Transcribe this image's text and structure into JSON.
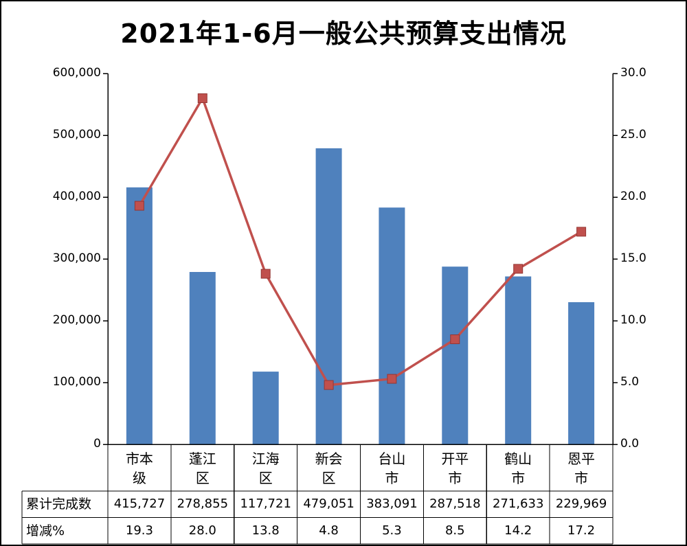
{
  "title": "2021年1-6月一般公共预算支出情况",
  "chart_data": {
    "type": "combo-bar-line",
    "title": "2021年1-6月一般公共预算支出情况",
    "categories": [
      "市本级",
      "蓬江区",
      "江海区",
      "新会区",
      "台山市",
      "开平市",
      "鹤山市",
      "恩平市"
    ],
    "series": [
      {
        "name": "累计完成数",
        "type": "bar",
        "axis": "left",
        "color": "#4f81bd",
        "values": [
          415727,
          278855,
          117721,
          479051,
          383091,
          287518,
          271633,
          229969
        ]
      },
      {
        "name": "增减%",
        "type": "line",
        "axis": "right",
        "color": "#c0504d",
        "values": [
          19.3,
          28.0,
          13.8,
          4.8,
          5.3,
          8.5,
          14.2,
          17.2
        ]
      }
    ],
    "left_axis": {
      "min": 0,
      "max": 600000,
      "step": 100000,
      "tick_labels": [
        "0",
        "100,000",
        "200,000",
        "300,000",
        "400,000",
        "500,000",
        "600,000"
      ]
    },
    "right_axis": {
      "min": 0,
      "max": 30,
      "step": 5,
      "tick_labels": [
        "0.0",
        "5.0",
        "10.0",
        "15.0",
        "20.0",
        "25.0",
        "30.0"
      ]
    },
    "grid": false,
    "legend_position": "none"
  },
  "table": {
    "row_labels": [
      "累计完成数",
      "增减%"
    ],
    "rows": [
      [
        "415,727",
        "278,855",
        "117,721",
        "479,051",
        "383,091",
        "287,518",
        "271,633",
        "229,969"
      ],
      [
        "19.3",
        "28.0",
        "13.8",
        "4.8",
        "5.3",
        "8.5",
        "14.2",
        "17.2"
      ]
    ]
  },
  "colors": {
    "bar": "#4f81bd",
    "line": "#c0504d",
    "marker_border": "#943634",
    "axis": "#000000",
    "table_border": "#000000"
  }
}
